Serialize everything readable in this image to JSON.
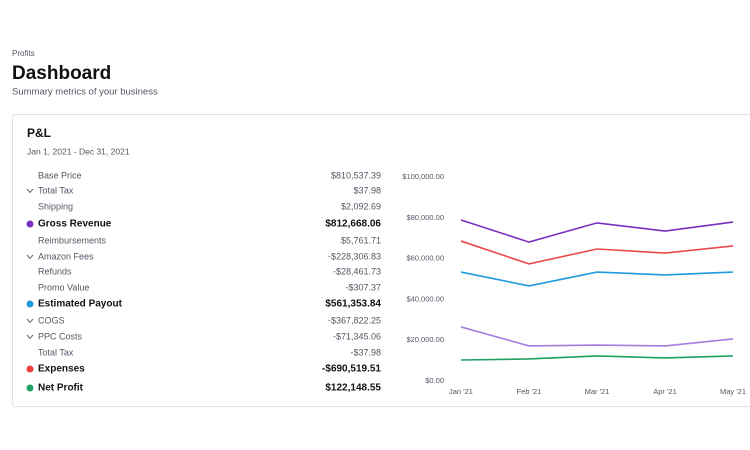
{
  "header": {
    "breadcrumb": "Profits",
    "title": "Dashboard",
    "subtitle": "Summary metrics of your business"
  },
  "card": {
    "title": "P&L",
    "date_range": "Jan 1, 2021 - Dec 31, 2021",
    "rows": [
      {
        "label": "Base Price",
        "value": "$810,537.39"
      },
      {
        "label": "Total Tax",
        "value": "$37.98",
        "expandable": true
      },
      {
        "label": "Shipping",
        "value": "$2,092.69"
      },
      {
        "label": "Gross Revenue",
        "value": "$812,668.06",
        "bold": true,
        "dot": "#7b2fbf"
      },
      {
        "label": "Reimbursements",
        "value": "$5,761.71"
      },
      {
        "label": "Amazon Fees",
        "value": "-$228,306.83",
        "expandable": true
      },
      {
        "label": "Refunds",
        "value": "-$28,461.73"
      },
      {
        "label": "Promo Value",
        "value": "-$307.37"
      },
      {
        "label": "Estimated Payout",
        "value": "$561,353.84",
        "bold": true,
        "dot": "#1e9be0"
      },
      {
        "label": "COGS",
        "value": "-$367,822.25",
        "expandable": true
      },
      {
        "label": "PPC Costs",
        "value": "-$71,345.06",
        "expandable": true
      },
      {
        "label": "Total Tax",
        "value": "-$37.98"
      },
      {
        "label": "Expenses",
        "value": "-$690,519.51",
        "bold": true,
        "dot": "#ec3f3f"
      },
      {
        "label": "Net Profit",
        "value": "$122,148.55",
        "bold": true,
        "dot": "#21a163"
      }
    ]
  },
  "chart_data": {
    "type": "line",
    "categories": [
      "Jan '21",
      "Feb '21",
      "Mar '21",
      "Apr '21",
      "May '21"
    ],
    "series": [
      {
        "color": "#7b2fbf",
        "values": [
          78900,
          68100,
          77500,
          73500,
          77900
        ]
      },
      {
        "color": "#ec4a4a",
        "values": [
          68600,
          57400,
          64700,
          62700,
          66200
        ]
      },
      {
        "color": "#1e9be0",
        "values": [
          53400,
          46600,
          53400,
          52000,
          53400
        ]
      },
      {
        "color": "#a37ddf",
        "values": [
          26500,
          17200,
          17600,
          17200,
          20600
        ]
      },
      {
        "color": "#21a163",
        "values": [
          10300,
          10800,
          12300,
          11300,
          12300
        ]
      }
    ],
    "ylim": [
      0,
      100000
    ],
    "yticks": [
      {
        "value": 0,
        "label": "$0.00"
      },
      {
        "value": 20000,
        "label": "$20,000.00"
      },
      {
        "value": 40000,
        "label": "$40,000.00"
      },
      {
        "value": 60000,
        "label": "$60,000.00"
      },
      {
        "value": 80000,
        "label": "$80,000.00"
      },
      {
        "value": 100000,
        "label": "$100,000.00"
      }
    ]
  }
}
